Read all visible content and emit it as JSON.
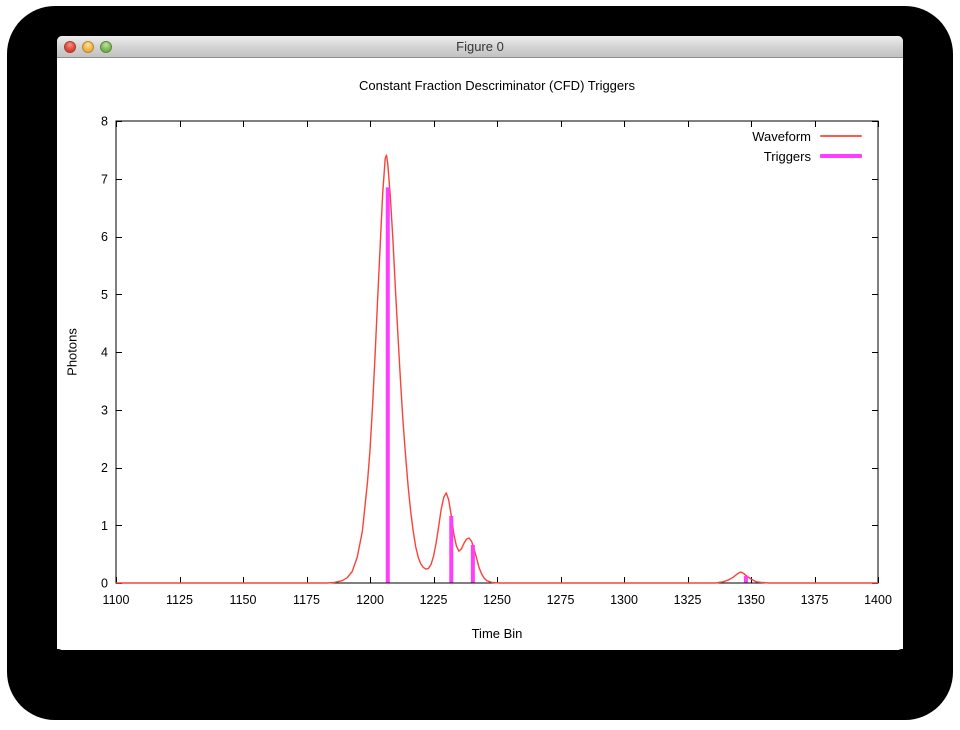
{
  "window": {
    "title": "Figure 0",
    "close_button": "close",
    "minimize_button": "minimize",
    "zoom_button": "zoom"
  },
  "chart_data": {
    "type": "line",
    "title": "Constant Fraction Descriminator (CFD) Triggers",
    "xlabel": "Time Bin",
    "ylabel": "Photons",
    "xlim": [
      1100,
      1400
    ],
    "ylim": [
      0,
      8
    ],
    "xticks": [
      1100,
      1125,
      1150,
      1175,
      1200,
      1225,
      1250,
      1275,
      1300,
      1325,
      1350,
      1375,
      1400
    ],
    "yticks": [
      0,
      1,
      2,
      3,
      4,
      5,
      6,
      7,
      8
    ],
    "grid": false,
    "legend": {
      "position": "top-right-inside",
      "entries": [
        {
          "label": "Waveform",
          "color": "#ff5a50",
          "style": "line"
        },
        {
          "label": "Triggers",
          "color": "#ff3dfc",
          "style": "thick-line"
        }
      ]
    },
    "series": [
      {
        "name": "Waveform",
        "render": "line",
        "color": "#f84338",
        "points": [
          [
            1100,
            0
          ],
          [
            1125,
            0
          ],
          [
            1150,
            0
          ],
          [
            1170,
            0
          ],
          [
            1183,
            0
          ],
          [
            1186,
            0.01
          ],
          [
            1189,
            0.04
          ],
          [
            1191,
            0.09
          ],
          [
            1193,
            0.2
          ],
          [
            1195,
            0.45
          ],
          [
            1197,
            0.9
          ],
          [
            1199,
            1.75
          ],
          [
            1200,
            2.3
          ],
          [
            1201,
            3.05
          ],
          [
            1202,
            3.95
          ],
          [
            1203,
            4.9
          ],
          [
            1204,
            5.85
          ],
          [
            1205,
            6.75
          ],
          [
            1206,
            7.35
          ],
          [
            1206.5,
            7.41
          ],
          [
            1207,
            7.25
          ],
          [
            1208,
            6.7
          ],
          [
            1209,
            5.95
          ],
          [
            1210,
            5.1
          ],
          [
            1211,
            4.3
          ],
          [
            1212,
            3.5
          ],
          [
            1213,
            2.8
          ],
          [
            1214,
            2.2
          ],
          [
            1215,
            1.68
          ],
          [
            1216,
            1.25
          ],
          [
            1217,
            0.9
          ],
          [
            1218,
            0.63
          ],
          [
            1219,
            0.44
          ],
          [
            1220,
            0.33
          ],
          [
            1221,
            0.27
          ],
          [
            1222,
            0.24
          ],
          [
            1223,
            0.25
          ],
          [
            1224,
            0.32
          ],
          [
            1225,
            0.46
          ],
          [
            1226,
            0.68
          ],
          [
            1227,
            0.97
          ],
          [
            1228,
            1.27
          ],
          [
            1229,
            1.48
          ],
          [
            1230,
            1.56
          ],
          [
            1231,
            1.44
          ],
          [
            1232,
            1.16
          ],
          [
            1233,
            0.85
          ],
          [
            1234,
            0.64
          ],
          [
            1235,
            0.55
          ],
          [
            1236,
            0.59
          ],
          [
            1237,
            0.69
          ],
          [
            1238,
            0.76
          ],
          [
            1239,
            0.78
          ],
          [
            1240,
            0.72
          ],
          [
            1241,
            0.59
          ],
          [
            1242,
            0.42
          ],
          [
            1243,
            0.26
          ],
          [
            1244,
            0.15
          ],
          [
            1245,
            0.08
          ],
          [
            1246,
            0.04
          ],
          [
            1248,
            0.01
          ],
          [
            1251,
            0
          ],
          [
            1275,
            0
          ],
          [
            1300,
            0
          ],
          [
            1325,
            0
          ],
          [
            1336,
            0
          ],
          [
            1339,
            0.02
          ],
          [
            1341,
            0.05
          ],
          [
            1343,
            0.1
          ],
          [
            1345,
            0.17
          ],
          [
            1346,
            0.19
          ],
          [
            1347,
            0.17
          ],
          [
            1348,
            0.13
          ],
          [
            1350,
            0.07
          ],
          [
            1352,
            0.02
          ],
          [
            1354,
            0.01
          ],
          [
            1357,
            0
          ],
          [
            1375,
            0
          ],
          [
            1400,
            0
          ]
        ]
      },
      {
        "name": "Triggers",
        "render": "vlines",
        "color": "#ff3dfc",
        "points": [
          [
            1207,
            6.85
          ],
          [
            1232,
            1.16
          ],
          [
            1240.5,
            0.66
          ],
          [
            1348,
            0.12
          ]
        ]
      }
    ]
  },
  "colors": {
    "axis": "#000000",
    "background": "#ffffff",
    "backdrop": "#000000"
  }
}
